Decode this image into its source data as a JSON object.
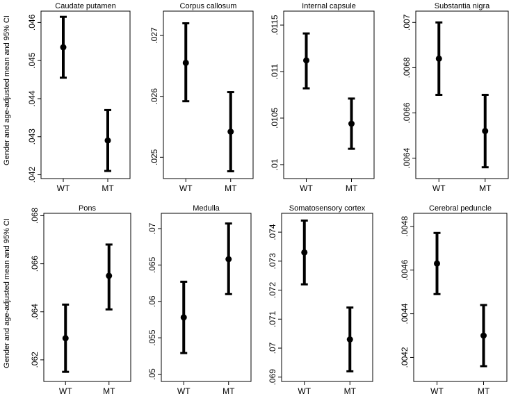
{
  "figure": {
    "ylabel": "Gender and age-adjusted mean and 95% CI",
    "categories": [
      "WT",
      "MT"
    ]
  },
  "chart_data": [
    {
      "type": "errorbar",
      "title": "Caudate putamen",
      "categories": [
        "WT",
        "MT"
      ],
      "ylim": [
        0.0419,
        0.0463
      ],
      "yticks": [
        {
          "value": 0.042,
          "label": ".042"
        },
        {
          "value": 0.043,
          "label": ".043"
        },
        {
          "value": 0.044,
          "label": ".044"
        },
        {
          "value": 0.045,
          "label": ".045"
        },
        {
          "value": 0.046,
          "label": ".046"
        }
      ],
      "points": [
        {
          "category": "WT",
          "mean": 0.04535,
          "lower": 0.04455,
          "upper": 0.04615
        },
        {
          "category": "MT",
          "mean": 0.0429,
          "lower": 0.0421,
          "upper": 0.0437
        }
      ]
    },
    {
      "type": "errorbar",
      "title": "Corpus callosum",
      "categories": [
        "WT",
        "MT"
      ],
      "ylim": [
        0.02465,
        0.0274
      ],
      "yticks": [
        {
          "value": 0.025,
          "label": ".025"
        },
        {
          "value": 0.026,
          "label": ".026"
        },
        {
          "value": 0.027,
          "label": ".027"
        }
      ],
      "points": [
        {
          "category": "WT",
          "mean": 0.02655,
          "lower": 0.02592,
          "upper": 0.0272
        },
        {
          "category": "MT",
          "mean": 0.02542,
          "lower": 0.02477,
          "upper": 0.02607
        }
      ]
    },
    {
      "type": "errorbar",
      "title": "Internal capsule",
      "categories": [
        "WT",
        "MT"
      ],
      "ylim": [
        0.00985,
        0.01165
      ],
      "yticks": [
        {
          "value": 0.01,
          "label": ".01"
        },
        {
          "value": 0.0105,
          "label": ".0105"
        },
        {
          "value": 0.011,
          "label": ".011"
        },
        {
          "value": 0.0115,
          "label": ".0115"
        }
      ],
      "points": [
        {
          "category": "WT",
          "mean": 0.01112,
          "lower": 0.01082,
          "upper": 0.01141
        },
        {
          "category": "MT",
          "mean": 0.01044,
          "lower": 0.01017,
          "upper": 0.01071
        }
      ]
    },
    {
      "type": "errorbar",
      "title": "Substantia nigra",
      "categories": [
        "WT",
        "MT"
      ],
      "ylim": [
        0.00631,
        0.00705
      ],
      "yticks": [
        {
          "value": 0.0064,
          "label": ".0064"
        },
        {
          "value": 0.0066,
          "label": ".0066"
        },
        {
          "value": 0.0068,
          "label": ".0068"
        },
        {
          "value": 0.007,
          "label": ".007"
        }
      ],
      "points": [
        {
          "category": "WT",
          "mean": 0.00684,
          "lower": 0.00668,
          "upper": 0.007
        },
        {
          "category": "MT",
          "mean": 0.00652,
          "lower": 0.00636,
          "upper": 0.00668
        }
      ]
    },
    {
      "type": "errorbar",
      "title": "Pons",
      "categories": [
        "WT",
        "MT"
      ],
      "ylim": [
        0.0611,
        0.0681
      ],
      "yticks": [
        {
          "value": 0.062,
          "label": ".062"
        },
        {
          "value": 0.064,
          "label": ".064"
        },
        {
          "value": 0.066,
          "label": ".066"
        },
        {
          "value": 0.068,
          "label": ".068"
        }
      ],
      "points": [
        {
          "category": "WT",
          "mean": 0.0629,
          "lower": 0.0615,
          "upper": 0.0643
        },
        {
          "category": "MT",
          "mean": 0.0655,
          "lower": 0.0641,
          "upper": 0.0668
        }
      ]
    },
    {
      "type": "errorbar",
      "title": "Medulla",
      "categories": [
        "WT",
        "MT"
      ],
      "ylim": [
        0.049,
        0.0721
      ],
      "yticks": [
        {
          "value": 0.05,
          "label": ".05"
        },
        {
          "value": 0.055,
          "label": ".055"
        },
        {
          "value": 0.06,
          "label": ".06"
        },
        {
          "value": 0.065,
          "label": ".065"
        },
        {
          "value": 0.07,
          "label": ".07"
        }
      ],
      "points": [
        {
          "category": "WT",
          "mean": 0.0578,
          "lower": 0.0529,
          "upper": 0.0627
        },
        {
          "category": "MT",
          "mean": 0.0658,
          "lower": 0.061,
          "upper": 0.0707
        }
      ]
    },
    {
      "type": "errorbar",
      "title": "Somatosensory cortex",
      "categories": [
        "WT",
        "MT"
      ],
      "ylim": [
        0.06885,
        0.07465
      ],
      "yticks": [
        {
          "value": 0.069,
          "label": ".069"
        },
        {
          "value": 0.07,
          "label": ".07"
        },
        {
          "value": 0.071,
          "label": ".071"
        },
        {
          "value": 0.072,
          "label": ".072"
        },
        {
          "value": 0.073,
          "label": ".073"
        },
        {
          "value": 0.074,
          "label": ".074"
        }
      ],
      "points": [
        {
          "category": "WT",
          "mean": 0.0733,
          "lower": 0.0722,
          "upper": 0.0744
        },
        {
          "category": "MT",
          "mean": 0.0703,
          "lower": 0.0692,
          "upper": 0.0714
        }
      ]
    },
    {
      "type": "errorbar",
      "title": "Cerebral peduncle",
      "categories": [
        "WT",
        "MT"
      ],
      "ylim": [
        0.00409,
        0.00486
      ],
      "yticks": [
        {
          "value": 0.0042,
          "label": ".0042"
        },
        {
          "value": 0.0044,
          "label": ".0044"
        },
        {
          "value": 0.0046,
          "label": ".0046"
        },
        {
          "value": 0.0048,
          "label": ".0048"
        }
      ],
      "points": [
        {
          "category": "WT",
          "mean": 0.00463,
          "lower": 0.00449,
          "upper": 0.00477
        },
        {
          "category": "MT",
          "mean": 0.0043,
          "lower": 0.00416,
          "upper": 0.00444
        }
      ]
    }
  ]
}
